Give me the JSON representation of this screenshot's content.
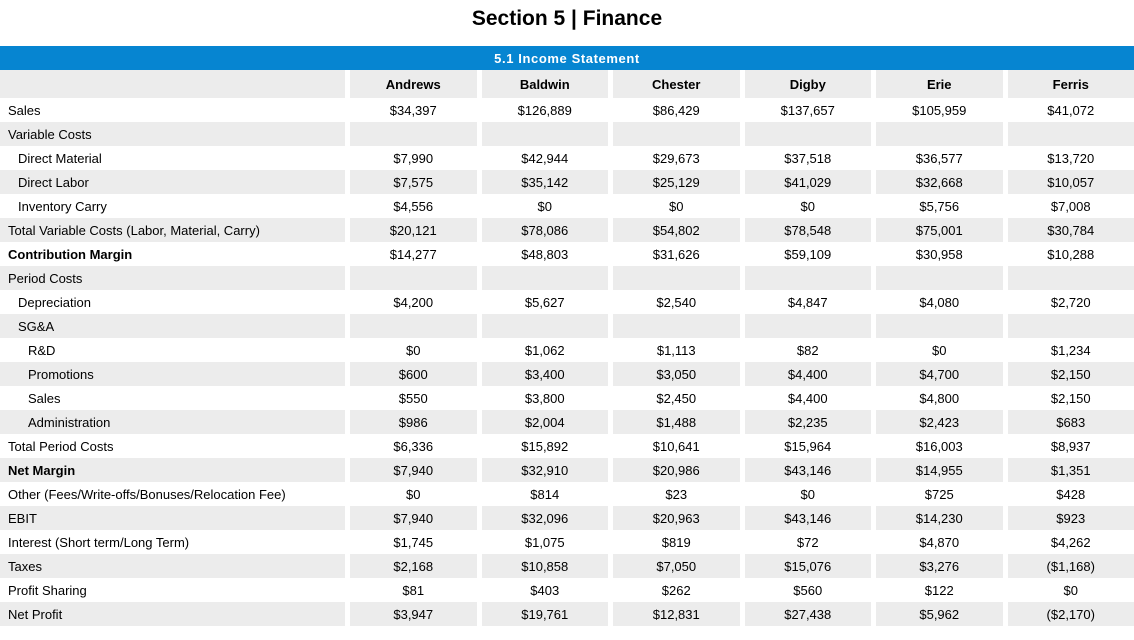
{
  "page_title": "Section 5 | Finance",
  "colors": {
    "banner_blue": "#0685d1",
    "stripe_gray": "#ececec",
    "text": "#000000"
  },
  "table": {
    "banner_title": "5.1 Income Statement",
    "columns": [
      "Andrews",
      "Baldwin",
      "Chester",
      "Digby",
      "Erie",
      "Ferris"
    ],
    "rows": [
      {
        "label": "Sales",
        "indent": 0,
        "bold": false,
        "values": [
          "$34,397",
          "$126,889",
          "$86,429",
          "$137,657",
          "$105,959",
          "$41,072"
        ]
      },
      {
        "label": "Variable Costs",
        "indent": 0,
        "bold": false,
        "values": [
          "",
          "",
          "",
          "",
          "",
          ""
        ]
      },
      {
        "label": "Direct Material",
        "indent": 1,
        "bold": false,
        "values": [
          "$7,990",
          "$42,944",
          "$29,673",
          "$37,518",
          "$36,577",
          "$13,720"
        ]
      },
      {
        "label": "Direct Labor",
        "indent": 1,
        "bold": false,
        "values": [
          "$7,575",
          "$35,142",
          "$25,129",
          "$41,029",
          "$32,668",
          "$10,057"
        ]
      },
      {
        "label": "Inventory Carry",
        "indent": 1,
        "bold": false,
        "values": [
          "$4,556",
          "$0",
          "$0",
          "$0",
          "$5,756",
          "$7,008"
        ]
      },
      {
        "label": "Total Variable Costs (Labor, Material, Carry)",
        "indent": 0,
        "bold": false,
        "values": [
          "$20,121",
          "$78,086",
          "$54,802",
          "$78,548",
          "$75,001",
          "$30,784"
        ]
      },
      {
        "label": "Contribution Margin",
        "indent": 0,
        "bold": true,
        "values": [
          "$14,277",
          "$48,803",
          "$31,626",
          "$59,109",
          "$30,958",
          "$10,288"
        ]
      },
      {
        "label": "Period Costs",
        "indent": 0,
        "bold": false,
        "values": [
          "",
          "",
          "",
          "",
          "",
          ""
        ]
      },
      {
        "label": "Depreciation",
        "indent": 1,
        "bold": false,
        "values": [
          "$4,200",
          "$5,627",
          "$2,540",
          "$4,847",
          "$4,080",
          "$2,720"
        ]
      },
      {
        "label": "SG&A",
        "indent": 1,
        "bold": false,
        "values": [
          "",
          "",
          "",
          "",
          "",
          ""
        ]
      },
      {
        "label": "R&D",
        "indent": 2,
        "bold": false,
        "values": [
          "$0",
          "$1,062",
          "$1,113",
          "$82",
          "$0",
          "$1,234"
        ]
      },
      {
        "label": "Promotions",
        "indent": 2,
        "bold": false,
        "values": [
          "$600",
          "$3,400",
          "$3,050",
          "$4,400",
          "$4,700",
          "$2,150"
        ]
      },
      {
        "label": "Sales",
        "indent": 2,
        "bold": false,
        "values": [
          "$550",
          "$3,800",
          "$2,450",
          "$4,400",
          "$4,800",
          "$2,150"
        ]
      },
      {
        "label": "Administration",
        "indent": 2,
        "bold": false,
        "values": [
          "$986",
          "$2,004",
          "$1,488",
          "$2,235",
          "$2,423",
          "$683"
        ]
      },
      {
        "label": "Total Period Costs",
        "indent": 0,
        "bold": false,
        "values": [
          "$6,336",
          "$15,892",
          "$10,641",
          "$15,964",
          "$16,003",
          "$8,937"
        ]
      },
      {
        "label": "Net Margin",
        "indent": 0,
        "bold": true,
        "values": [
          "$7,940",
          "$32,910",
          "$20,986",
          "$43,146",
          "$14,955",
          "$1,351"
        ]
      },
      {
        "label": "Other (Fees/Write-offs/Bonuses/Relocation Fee)",
        "indent": 0,
        "bold": false,
        "values": [
          "$0",
          "$814",
          "$23",
          "$0",
          "$725",
          "$428"
        ]
      },
      {
        "label": "EBIT",
        "indent": 0,
        "bold": false,
        "values": [
          "$7,940",
          "$32,096",
          "$20,963",
          "$43,146",
          "$14,230",
          "$923"
        ]
      },
      {
        "label": "Interest (Short term/Long Term)",
        "indent": 0,
        "bold": false,
        "values": [
          "$1,745",
          "$1,075",
          "$819",
          "$72",
          "$4,870",
          "$4,262"
        ]
      },
      {
        "label": "Taxes",
        "indent": 0,
        "bold": false,
        "values": [
          "$2,168",
          "$10,858",
          "$7,050",
          "$15,076",
          "$3,276",
          "($1,168)"
        ]
      },
      {
        "label": "Profit Sharing",
        "indent": 0,
        "bold": false,
        "values": [
          "$81",
          "$403",
          "$262",
          "$560",
          "$122",
          "$0"
        ]
      },
      {
        "label": "Net Profit",
        "indent": 0,
        "bold": false,
        "values": [
          "$3,947",
          "$19,761",
          "$12,831",
          "$27,438",
          "$5,962",
          "($2,170)"
        ]
      }
    ]
  }
}
